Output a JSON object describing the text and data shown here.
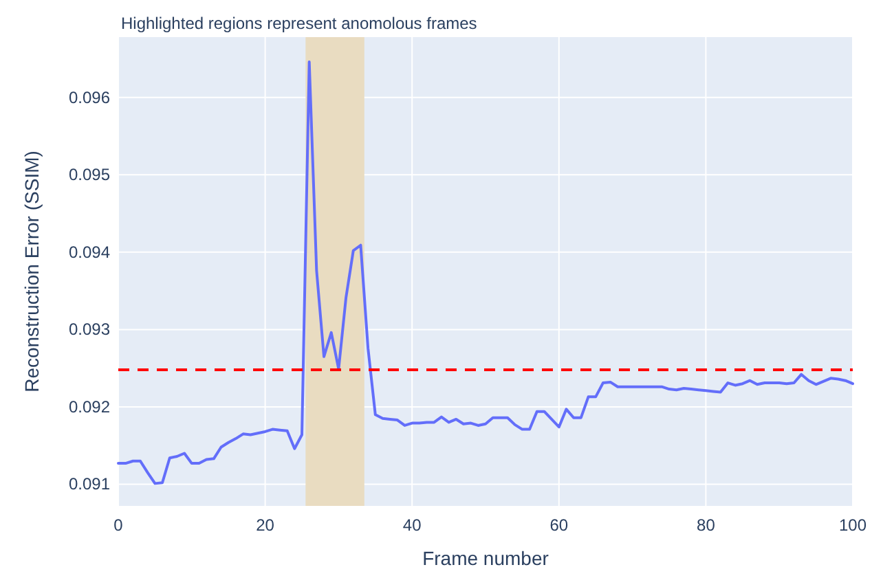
{
  "chart_data": {
    "type": "line",
    "title": "Highlighted regions represent anomolous frames",
    "xlabel": "Frame number",
    "ylabel": "Reconstruction Error (SSIM)",
    "x": [
      0,
      1,
      2,
      3,
      4,
      5,
      6,
      7,
      8,
      9,
      10,
      11,
      12,
      13,
      14,
      15,
      16,
      17,
      18,
      19,
      20,
      21,
      22,
      23,
      24,
      25,
      26,
      27,
      28,
      29,
      30,
      31,
      32,
      33,
      34,
      35,
      36,
      37,
      38,
      39,
      40,
      41,
      42,
      43,
      44,
      45,
      46,
      47,
      48,
      49,
      50,
      51,
      52,
      53,
      54,
      55,
      56,
      57,
      58,
      59,
      60,
      61,
      62,
      63,
      64,
      65,
      66,
      67,
      68,
      69,
      70,
      71,
      72,
      73,
      74,
      75,
      76,
      77,
      78,
      79,
      80,
      81,
      82,
      83,
      84,
      85,
      86,
      87,
      88,
      89,
      90,
      91,
      92,
      93,
      94,
      95,
      96,
      97,
      98,
      99,
      100
    ],
    "series": [
      {
        "color": "#636efa",
        "values": [
          0.09127,
          0.09127,
          0.0913,
          0.0913,
          0.09115,
          0.09101,
          0.09102,
          0.09134,
          0.09136,
          0.0914,
          0.09127,
          0.09127,
          0.09132,
          0.09133,
          0.09148,
          0.09154,
          0.09159,
          0.09165,
          0.09164,
          0.09166,
          0.09168,
          0.09171,
          0.0917,
          0.09169,
          0.09146,
          0.09164,
          0.09646,
          0.09376,
          0.09265,
          0.09296,
          0.09249,
          0.09341,
          0.09402,
          0.09409,
          0.09276,
          0.0919,
          0.09185,
          0.09184,
          0.09183,
          0.09176,
          0.09179,
          0.09179,
          0.0918,
          0.0918,
          0.09187,
          0.0918,
          0.09184,
          0.09178,
          0.09179,
          0.09176,
          0.09178,
          0.09186,
          0.09186,
          0.09186,
          0.09177,
          0.09171,
          0.09171,
          0.09194,
          0.09194,
          0.09184,
          0.09174,
          0.09197,
          0.09186,
          0.09186,
          0.09213,
          0.09213,
          0.09231,
          0.09232,
          0.09226,
          0.09226,
          0.09226,
          0.09226,
          0.09226,
          0.09226,
          0.09226,
          0.09223,
          0.09222,
          0.09224,
          0.09223,
          0.09222,
          0.09221,
          0.0922,
          0.09219,
          0.09231,
          0.09228,
          0.0923,
          0.09234,
          0.09229,
          0.09231,
          0.09231,
          0.09231,
          0.0923,
          0.09231,
          0.09242,
          0.09234,
          0.09229,
          0.09233,
          0.09237,
          0.09236,
          0.09234,
          0.0923
        ]
      }
    ],
    "xlim": [
      0,
      100
    ],
    "xticks": [
      0,
      20,
      40,
      60,
      80,
      100
    ],
    "ylim": [
      0.09072,
      0.09678
    ],
    "yticks": [
      0.091,
      0.092,
      0.093,
      0.094,
      0.095,
      0.096
    ],
    "grid": true,
    "line_style": "solid",
    "marker": "none",
    "ref_lines": [
      {
        "axis": "y",
        "value": 0.09248,
        "color": "#ff0000",
        "line_style": "dashed"
      }
    ],
    "bands": [
      {
        "axis": "x",
        "from": 25.5,
        "to": 33.5,
        "color": "#e9dcc1"
      }
    ]
  }
}
